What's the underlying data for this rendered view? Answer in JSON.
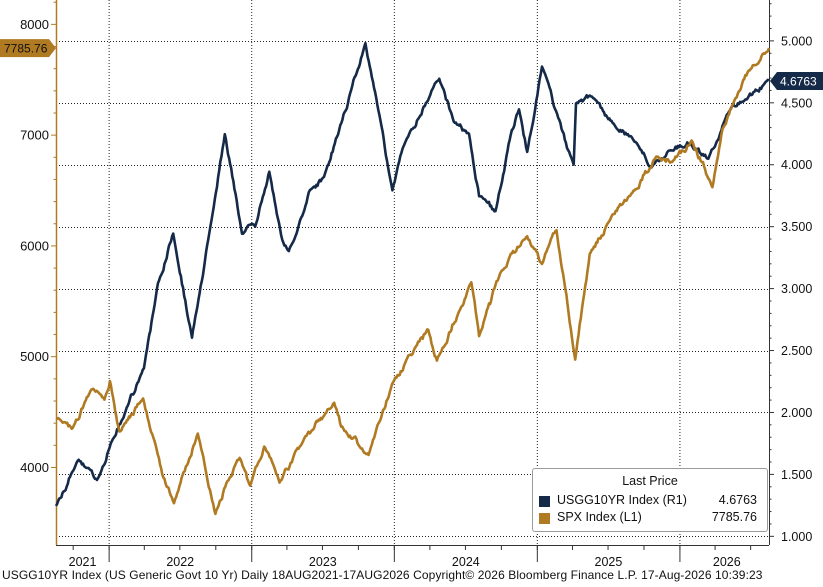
{
  "chart_data": {
    "type": "line",
    "x_range": [
      "2021-08-18",
      "2026-08-17"
    ],
    "x_tick_labels": [
      "2021",
      "2022",
      "2023",
      "2024",
      "2025",
      "2026"
    ],
    "left_axis": {
      "ylim": [
        3300,
        8220
      ],
      "ticks": [
        4000,
        5000,
        6000,
        7000,
        8000
      ],
      "tick_labels": [
        "4000",
        "5000",
        "6000",
        "7000",
        "8000"
      ]
    },
    "right_axis": {
      "ylim": [
        0.93,
        5.33
      ],
      "ticks": [
        1.0,
        1.5,
        2.0,
        2.5,
        3.0,
        3.5,
        4.0,
        4.5,
        5.0
      ],
      "tick_labels": [
        "1.000",
        "1.500",
        "2.000",
        "2.500",
        "3.000",
        "3.500",
        "4.000",
        "4.500",
        "5.000"
      ]
    },
    "grid": true,
    "legend_position": "bottom-right",
    "series": [
      {
        "name": "USGG10YR Index (R1)",
        "axis": "right",
        "color": "#152a48",
        "last_value": "4.6763",
        "x": [
          "2021-08-18",
          "2021-10-15",
          "2021-12-01",
          "2022-01-05",
          "2022-02-15",
          "2022-03-31",
          "2022-05-06",
          "2022-06-14",
          "2022-08-01",
          "2022-09-20",
          "2022-10-24",
          "2022-12-07",
          "2023-01-10",
          "2023-02-15",
          "2023-03-20",
          "2023-04-06",
          "2023-05-30",
          "2023-07-05",
          "2023-08-10",
          "2023-10-19",
          "2023-12-27",
          "2024-01-25",
          "2024-04-25",
          "2024-06-01",
          "2024-07-10",
          "2024-08-05",
          "2024-09-16",
          "2024-10-25",
          "2024-11-15",
          "2024-12-06",
          "2025-01-13",
          "2025-02-15",
          "2025-04-04",
          "2025-04-10",
          "2025-05-21",
          "2025-07-10",
          "2025-09-01",
          "2025-10-20",
          "2025-12-10",
          "2026-01-20",
          "2026-03-15",
          "2026-05-01",
          "2026-06-15",
          "2026-08-17"
        ],
        "values": [
          1.25,
          1.62,
          1.45,
          1.75,
          2.04,
          2.35,
          3.05,
          3.45,
          2.6,
          3.55,
          4.25,
          3.45,
          3.5,
          3.95,
          3.4,
          3.3,
          3.8,
          3.9,
          4.25,
          4.98,
          3.8,
          4.15,
          4.7,
          4.35,
          4.25,
          3.75,
          3.62,
          4.25,
          4.45,
          4.1,
          4.79,
          4.45,
          4.0,
          4.5,
          4.55,
          4.35,
          4.22,
          3.98,
          4.12,
          4.18,
          4.05,
          4.4,
          4.52,
          4.68
        ]
      },
      {
        "name": "SPX Index (L1)",
        "axis": "left",
        "color": "#b07a22",
        "last_value": "7785.76",
        "x": [
          "2021-08-18",
          "2021-09-30",
          "2021-11-19",
          "2021-12-20",
          "2022-01-03",
          "2022-01-27",
          "2022-03-29",
          "2022-05-20",
          "2022-06-16",
          "2022-08-16",
          "2022-09-30",
          "2022-10-31",
          "2022-12-01",
          "2022-12-28",
          "2023-02-02",
          "2023-03-13",
          "2023-05-01",
          "2023-07-31",
          "2023-08-18",
          "2023-10-27",
          "2023-12-29",
          "2024-02-28",
          "2024-03-28",
          "2024-04-19",
          "2024-07-16",
          "2024-08-05",
          "2024-09-30",
          "2024-12-06",
          "2025-01-13",
          "2025-02-19",
          "2025-04-08",
          "2025-05-15",
          "2025-07-01",
          "2025-09-01",
          "2025-11-01",
          "2025-12-15",
          "2026-01-31",
          "2026-03-01",
          "2026-03-25",
          "2026-04-20",
          "2026-06-01",
          "2026-07-01",
          "2026-08-17"
        ],
        "values": [
          4450,
          4350,
          4700,
          4620,
          4780,
          4320,
          4620,
          3900,
          3670,
          4300,
          3580,
          3870,
          4080,
          3830,
          4180,
          3860,
          4170,
          4590,
          4370,
          4120,
          4770,
          5100,
          5250,
          4970,
          5670,
          5190,
          5760,
          6090,
          5830,
          6150,
          4980,
          5920,
          6200,
          6480,
          6800,
          6770,
          6950,
          6750,
          6530,
          7050,
          7400,
          7600,
          7785.76
        ]
      }
    ]
  },
  "labels": {
    "spx_tag": "7785.76",
    "usgg_tag": "4.6763"
  },
  "legend": {
    "title": "Last Price",
    "rows": [
      {
        "name": "USGG10YR Index  (R1)",
        "value": "4.6763",
        "color": "#152a48"
      },
      {
        "name": "SPX Index  (L1)",
        "value": "7785.76",
        "color": "#b07a22"
      }
    ]
  },
  "footer": "USGG10YR Index (US Generic Govt 10 Yr) Daily 18AUG2021-17AUG2026  Copyright© 2026 Bloomberg Finance L.P.  17-Aug-2026 10:39:23"
}
